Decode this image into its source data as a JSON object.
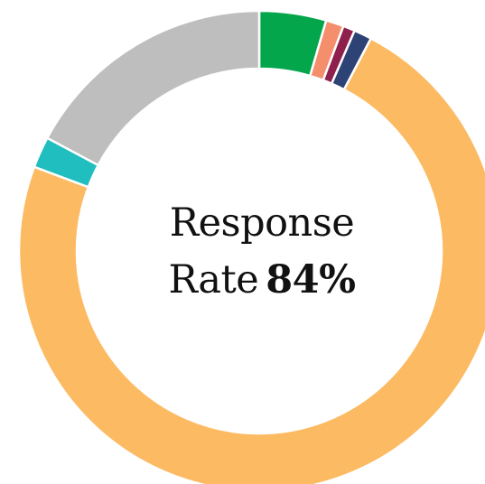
{
  "chart_data": {
    "type": "pie",
    "donut": true,
    "legend": "none",
    "values": [
      4.5,
      1.2,
      0.8,
      1.2,
      73.0,
      2.1,
      17.2
    ],
    "colors": [
      "#03a64a",
      "#f58e6c",
      "#8f1f4c",
      "#2d4275",
      "#fcba62",
      "#21bec0",
      "#bebebe"
    ],
    "center_label": {
      "line1": "Response",
      "line2": "Rate",
      "value": "84%"
    }
  }
}
